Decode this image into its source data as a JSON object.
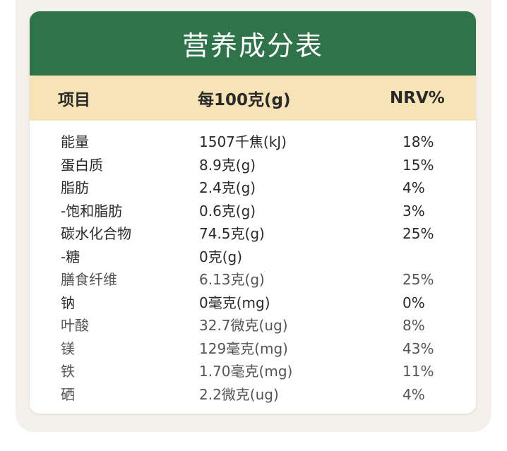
{
  "title": "营养成分表",
  "header": {
    "item": "项目",
    "per100g": "每100克(g)",
    "nrv": "NRV%"
  },
  "rows": [
    {
      "name": "能量",
      "amount": "1507千焦(kJ)",
      "nrv": "18%"
    },
    {
      "name": "蛋白质",
      "amount": "8.9克(g)",
      "nrv": "15%"
    },
    {
      "name": "脂肪",
      "amount": "2.4克(g)",
      "nrv": "4%"
    },
    {
      "name": "-饱和脂肪",
      "amount": "0.6克(g)",
      "nrv": "3%"
    },
    {
      "name": "碳水化合物",
      "amount": "74.5克(g)",
      "nrv": "25%"
    },
    {
      "name": "-糖",
      "amount": "0克(g)",
      "nrv": ""
    },
    {
      "name": "膳食纤维",
      "amount": "6.13克(g)",
      "nrv": "25%"
    },
    {
      "name": "钠",
      "amount": "0毫克(mg)",
      "nrv": "0%"
    },
    {
      "name": "叶酸",
      "amount": "32.7微克(ug)",
      "nrv": "8%"
    },
    {
      "name": "镁",
      "amount": "129毫克(mg)",
      "nrv": "43%"
    },
    {
      "name": "铁",
      "amount": "1.70毫克(mg)",
      "nrv": "11%"
    },
    {
      "name": "硒",
      "amount": "2.2微克(ug)",
      "nrv": "4%"
    }
  ],
  "colors": {
    "title_bg": "#2e7349",
    "header_bg": "#f7e4b6"
  }
}
